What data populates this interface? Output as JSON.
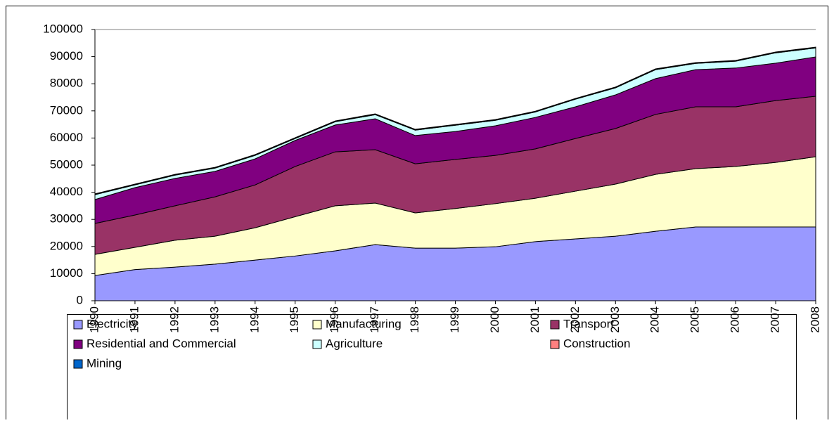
{
  "chart_data": {
    "type": "stacked-area",
    "x": [
      1990,
      1991,
      1992,
      1993,
      1994,
      1995,
      1996,
      1997,
      1998,
      1999,
      2000,
      2001,
      2002,
      2003,
      2004,
      2005,
      2006,
      2007,
      2008
    ],
    "xlim": [
      1990,
      2008
    ],
    "ylim": [
      0,
      100000
    ],
    "yticks": [
      0,
      10000,
      20000,
      30000,
      40000,
      50000,
      60000,
      70000,
      80000,
      90000,
      100000
    ],
    "legend": "bottom",
    "series": [
      {
        "name": "Electricity",
        "color": "#9999ff",
        "values": [
          9300,
          11500,
          12400,
          13500,
          15000,
          16500,
          18400,
          20700,
          19400,
          19400,
          19900,
          21800,
          22800,
          23800,
          25600,
          27200,
          27200,
          27200,
          27200
        ]
      },
      {
        "name": "Manufacturing",
        "color": "#ffffcc",
        "values": [
          7800,
          8200,
          9900,
          10300,
          11900,
          14500,
          16600,
          15300,
          13000,
          14600,
          15900,
          16000,
          17600,
          19200,
          21000,
          21500,
          22300,
          23800,
          25900
        ]
      },
      {
        "name": "Transport",
        "color": "#993366",
        "values": [
          11400,
          11900,
          12700,
          14500,
          15800,
          18500,
          19900,
          19700,
          18100,
          18100,
          17800,
          18200,
          19400,
          20500,
          22100,
          22800,
          22000,
          22800,
          22300
        ]
      },
      {
        "name": "Residential and Commercial",
        "color": "#800080",
        "values": [
          8800,
          10100,
          10100,
          9400,
          9600,
          9600,
          9900,
          11400,
          10400,
          10300,
          10900,
          11600,
          11700,
          12400,
          13200,
          13700,
          14300,
          13800,
          14500
        ]
      },
      {
        "name": "Agriculture",
        "color": "#ccffff",
        "values": [
          1800,
          1000,
          1200,
          1200,
          1300,
          700,
          1200,
          1500,
          2000,
          2300,
          2000,
          2000,
          2800,
          2600,
          3300,
          2300,
          2500,
          3800,
          3300
        ]
      },
      {
        "name": "Construction",
        "color": "#ff8080",
        "values": [
          150,
          150,
          150,
          150,
          150,
          150,
          150,
          150,
          150,
          150,
          150,
          150,
          150,
          150,
          150,
          150,
          150,
          150,
          150
        ]
      },
      {
        "name": "Mining",
        "color": "#0066cc",
        "values": [
          150,
          150,
          150,
          150,
          150,
          150,
          150,
          150,
          150,
          150,
          150,
          150,
          150,
          150,
          150,
          150,
          150,
          150,
          150
        ]
      }
    ]
  }
}
